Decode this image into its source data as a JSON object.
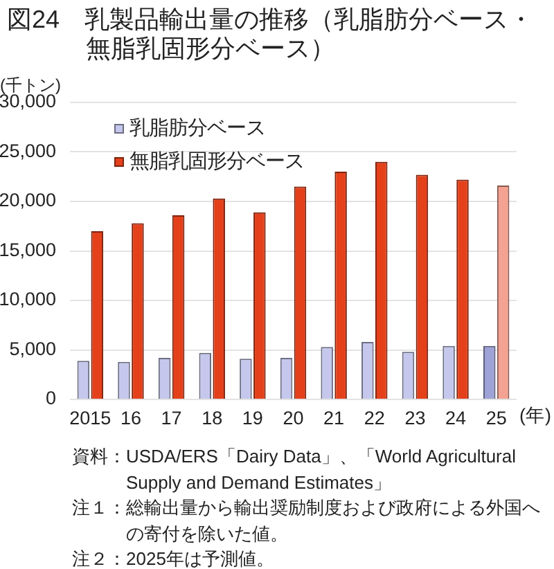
{
  "chart_data": {
    "type": "bar",
    "title": "図24　乳製品輸出量の推移（乳脂肪分ベース・無脂乳固形分ベース）",
    "ylabel": "(千トン)",
    "xlabel": "(年)",
    "categories": [
      "2015",
      "16",
      "17",
      "18",
      "19",
      "20",
      "21",
      "22",
      "23",
      "24",
      "25"
    ],
    "series": [
      {
        "name": "乳脂肪分ベース",
        "color": "#c5c8ec",
        "colors": [
          "#c5c8ec",
          "#c5c8ec",
          "#c5c8ec",
          "#c5c8ec",
          "#c5c8ec",
          "#c5c8ec",
          "#c5c8ec",
          "#c5c8ec",
          "#c5c8ec",
          "#c5c8ec",
          "#9ea2d6"
        ],
        "values": [
          3900,
          3800,
          4200,
          4700,
          4100,
          4200,
          5300,
          5800,
          4800,
          5400,
          5400
        ]
      },
      {
        "name": "無脂乳固形分ベース",
        "color": "#e4411b",
        "colors": [
          "#e4411b",
          "#e4411b",
          "#e4411b",
          "#e4411b",
          "#e4411b",
          "#e4411b",
          "#e4411b",
          "#e4411b",
          "#e4411b",
          "#e4411b",
          "#f4a291"
        ],
        "values": [
          17000,
          17800,
          18600,
          20300,
          18900,
          21500,
          23000,
          24000,
          22700,
          22200,
          21600
        ]
      }
    ],
    "ylim": [
      0,
      30000
    ],
    "yticks": [
      0,
      {
        "value": 5000,
        "label": "5,000"
      },
      {
        "value": 10000,
        "label": "10,000"
      },
      {
        "value": 15000,
        "label": "15,000"
      },
      {
        "value": 20000,
        "label": "20,000"
      },
      {
        "value": 25000,
        "label": "25,000"
      },
      {
        "value": 30000,
        "label": "30,000"
      }
    ],
    "grid": "y",
    "legend": "top left",
    "annotations": [
      "資料：USDA/ERS「Dairy Data」、「World Agricultural Supply and Demand Estimates」",
      "注１：総輸出量から輸出奨励制度および政府による外国への寄付を除いた値。",
      "注２：2025年は予測値。"
    ]
  }
}
